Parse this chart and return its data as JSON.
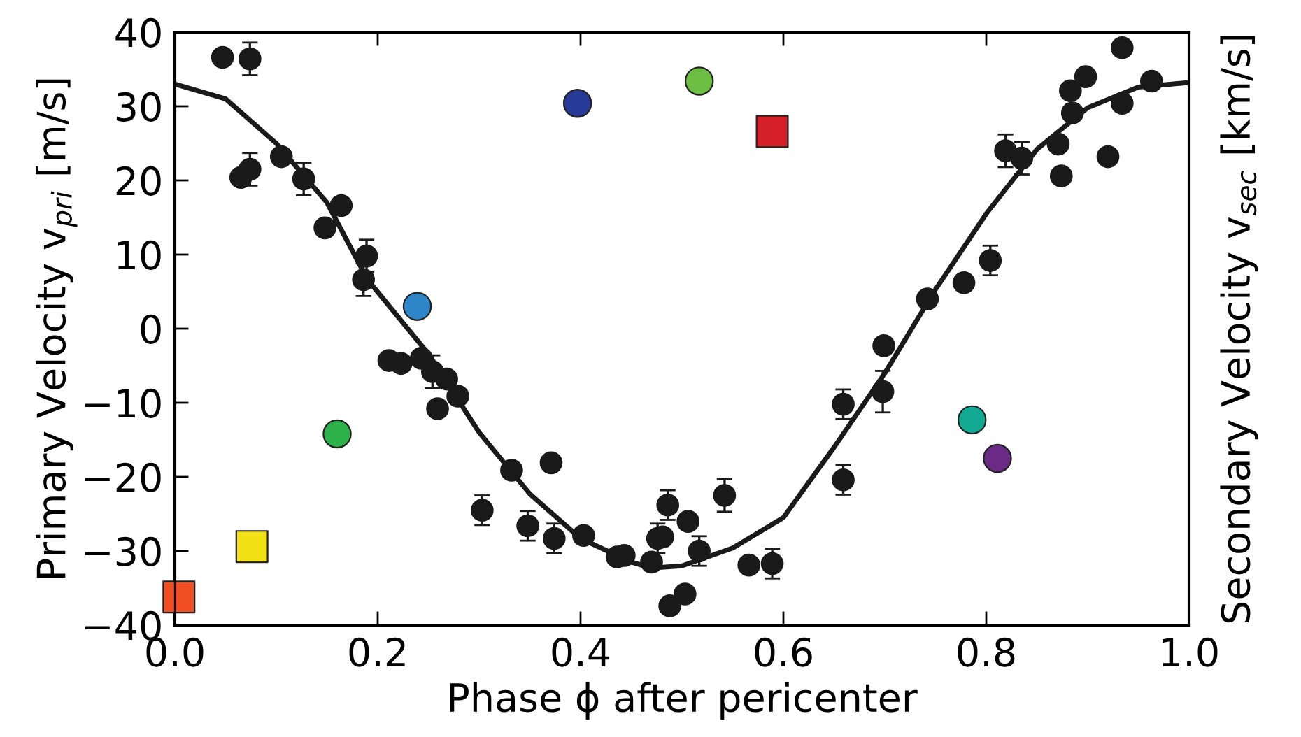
{
  "chart_data": {
    "type": "scatter",
    "xlabel": "Phase ϕ after pericenter",
    "ylabel": "Primary Velocity v$_{pri}$ [m/s]",
    "y2label": "Secondary Velocity v$_{sec}$ [km/s]",
    "xlim": [
      0,
      1
    ],
    "xticks": [
      {
        "value": 0,
        "label": "0.0"
      },
      {
        "value": 0.2,
        "label": "0.2"
      },
      {
        "value": 0.4,
        "label": "0.4"
      },
      {
        "value": 0.6,
        "label": "0.6"
      },
      {
        "value": 0.8,
        "label": "0.8"
      },
      {
        "value": 1,
        "label": "1.0"
      }
    ],
    "ylim": [
      -40,
      40
    ],
    "yticks": [
      {
        "value": -40,
        "label": "−40"
      },
      {
        "value": -30,
        "label": "−30"
      },
      {
        "value": -20,
        "label": "−20"
      },
      {
        "value": -10,
        "label": "−10"
      },
      0,
      10,
      20,
      30,
      40
    ],
    "grid": false,
    "legend": false,
    "series": [
      {
        "type": "line",
        "color": "#1a1a1a",
        "marker": "none",
        "line_style": "solid",
        "x": [
          0,
          0.05,
          0.1,
          0.15,
          0.19,
          0.25,
          0.3,
          0.35,
          0.4,
          0.45,
          0.47,
          0.5,
          0.55,
          0.6,
          0.65,
          0.7,
          0.75,
          0.8,
          0.85,
          0.9,
          0.95,
          1.0
        ],
        "values": [
          33,
          31,
          25,
          17,
          6.6,
          -3.4,
          -14,
          -22.3,
          -28.3,
          -31.5,
          -32.3,
          -32,
          -29.6,
          -25.5,
          -16,
          -6,
          5.3,
          15.5,
          24.2,
          29.8,
          32.6,
          33.2
        ]
      },
      {
        "color": "#1a1a1a",
        "marker": "circle",
        "x": [
          0.047,
          0.074,
          0.065,
          0.074,
          0.105,
          0.127,
          0.148,
          0.164,
          0.189,
          0.186,
          0.211,
          0.223,
          0.243,
          0.254,
          0.268,
          0.279,
          0.259,
          0.332,
          0.371,
          0.303,
          0.348,
          0.374,
          0.403,
          0.436,
          0.443,
          0.47,
          0.476,
          0.481,
          0.486,
          0.488,
          0.503,
          0.506,
          0.517,
          0.542,
          0.566,
          0.589,
          0.659,
          0.659,
          0.699,
          0.698,
          0.742,
          0.778,
          0.804,
          0.819,
          0.835,
          0.871,
          0.874,
          0.883,
          0.885,
          0.898,
          0.92,
          0.934,
          0.934,
          0.963
        ],
        "values": [
          36.6,
          36.4,
          20.4,
          21.5,
          23.2,
          20.2,
          13.6,
          16.6,
          9.8,
          6.6,
          -4.3,
          -4.7,
          -4.0,
          -5.8,
          -6.8,
          -9.1,
          -10.8,
          -19.1,
          -18.1,
          -24.5,
          -26.6,
          -28.3,
          -27.9,
          -30.8,
          -30.6,
          -31.5,
          -28.3,
          -28.1,
          -23.8,
          -37.4,
          -35.8,
          -26.0,
          -30.0,
          -22.5,
          -31.9,
          -31.7,
          -10.2,
          -20.4,
          -2.3,
          -8.5,
          4.0,
          6.2,
          9.2,
          24.0,
          23.0,
          24.9,
          20.6,
          32.1,
          29.1,
          34.0,
          23.2,
          37.9,
          30.4,
          33.4
        ],
        "errors": [
          null,
          2.2,
          null,
          2.2,
          null,
          2.2,
          null,
          null,
          2.2,
          2.2,
          null,
          null,
          null,
          2.2,
          null,
          null,
          null,
          null,
          null,
          2.0,
          2.0,
          2.0,
          null,
          null,
          null,
          null,
          2.0,
          null,
          2.0,
          null,
          null,
          null,
          2.0,
          2.2,
          null,
          2.0,
          2.0,
          2.0,
          null,
          2.8,
          null,
          null,
          2.0,
          2.2,
          2.2,
          null,
          null,
          null,
          null,
          null,
          null,
          null,
          null,
          null
        ]
      },
      {
        "type": "scatter",
        "color": "#f04e23",
        "marker": "square",
        "x": [
          0.004
        ],
        "values": [
          -36.2
        ]
      },
      {
        "type": "scatter",
        "color": "#f0e014",
        "marker": "square",
        "x": [
          0.076
        ],
        "values": [
          -29.4
        ]
      },
      {
        "type": "scatter",
        "color": "#2db34a",
        "marker": "circle",
        "x": [
          0.16
        ],
        "values": [
          -14.2
        ]
      },
      {
        "type": "scatter",
        "color": "#2e86c8",
        "marker": "circle",
        "x": [
          0.239
        ],
        "values": [
          3.0
        ]
      },
      {
        "type": "scatter",
        "color": "#283a97",
        "marker": "circle",
        "x": [
          0.397
        ],
        "values": [
          30.4
        ]
      },
      {
        "type": "scatter",
        "color": "#6dbf44",
        "marker": "circle",
        "x": [
          0.517
        ],
        "values": [
          33.4
        ]
      },
      {
        "type": "scatter",
        "color": "#d62027",
        "marker": "square",
        "x": [
          0.589
        ],
        "values": [
          26.6
        ]
      },
      {
        "type": "scatter",
        "color": "#13aa94",
        "marker": "circle",
        "x": [
          0.786
        ],
        "values": [
          -12.3
        ]
      },
      {
        "type": "scatter",
        "color": "#6a2a86",
        "marker": "circle",
        "x": [
          0.811
        ],
        "values": [
          -17.5
        ]
      }
    ]
  }
}
